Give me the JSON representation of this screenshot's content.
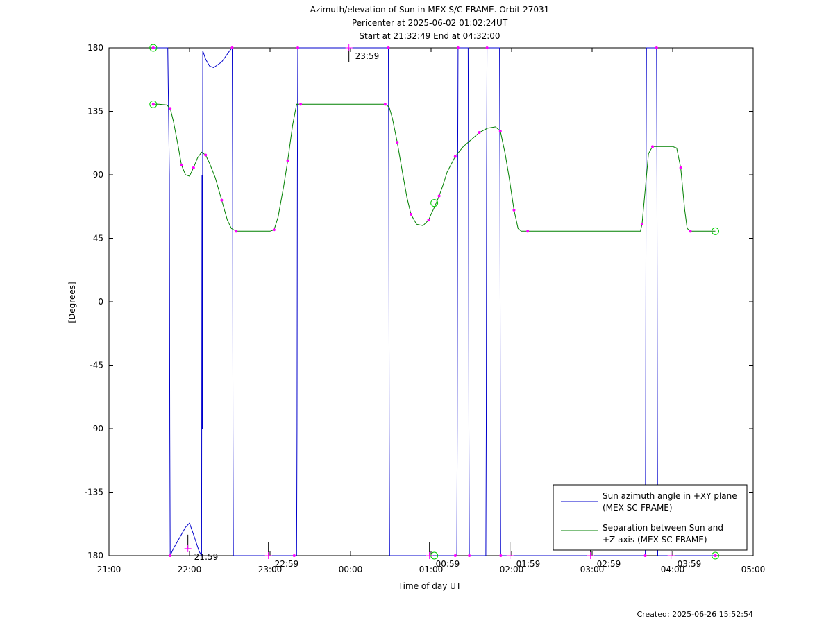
{
  "chart_data": {
    "type": "line",
    "title_lines": [
      "Azimuth/elevation of Sun in MEX S/C-FRAME.  Orbit 27031",
      "Pericenter at 2025-06-02 01:02:24UT",
      "Start at 21:32:49 End at 04:32:00"
    ],
    "xlabel": "Time of day UT",
    "ylabel": "[Degrees]",
    "xlim": [
      21.0,
      29.0
    ],
    "ylim": [
      -180,
      180
    ],
    "xticks": [
      {
        "v": 21,
        "label": "21:00"
      },
      {
        "v": 22,
        "label": "22:00"
      },
      {
        "v": 23,
        "label": "23:00"
      },
      {
        "v": 24,
        "label": "00:00"
      },
      {
        "v": 25,
        "label": "01:00"
      },
      {
        "v": 26,
        "label": "02:00"
      },
      {
        "v": 27,
        "label": "03:00"
      },
      {
        "v": 28,
        "label": "04:00"
      },
      {
        "v": 29,
        "label": "05:00"
      }
    ],
    "yticks": [
      {
        "v": 180,
        "label": "180"
      },
      {
        "v": 135,
        "label": "135"
      },
      {
        "v": 90,
        "label": "90"
      },
      {
        "v": 45,
        "label": "45"
      },
      {
        "v": 0,
        "label": "0"
      },
      {
        "v": -45,
        "label": "-45"
      },
      {
        "v": -90,
        "label": "-90"
      },
      {
        "v": -135,
        "label": "-135"
      },
      {
        "v": -180,
        "label": "-180"
      }
    ],
    "legend_position": "bottom-right",
    "series": [
      {
        "name": "Sun azimuth angle in +XY plane (MEX SC-FRAME)",
        "color": "#0000cc",
        "points": [
          [
            21.55,
            180
          ],
          [
            21.73,
            180
          ],
          [
            21.75,
            90
          ],
          [
            21.755,
            -90
          ],
          [
            21.76,
            -180
          ],
          [
            21.8,
            -175
          ],
          [
            21.9,
            -165
          ],
          [
            21.95,
            -160
          ],
          [
            22.0,
            -157
          ],
          [
            22.05,
            -165
          ],
          [
            22.12,
            -177
          ],
          [
            22.15,
            -180
          ],
          [
            22.155,
            90
          ],
          [
            22.16,
            -90
          ],
          [
            22.165,
            178
          ],
          [
            22.2,
            172
          ],
          [
            22.25,
            167
          ],
          [
            22.3,
            166
          ],
          [
            22.4,
            170
          ],
          [
            22.5,
            178
          ],
          [
            22.53,
            180
          ],
          [
            22.535,
            90
          ],
          [
            22.54,
            -90
          ],
          [
            22.545,
            -180
          ],
          [
            23.3,
            -180
          ],
          [
            23.33,
            -180
          ],
          [
            23.335,
            -90
          ],
          [
            23.34,
            90
          ],
          [
            23.345,
            180
          ],
          [
            24.45,
            180
          ],
          [
            24.47,
            180
          ],
          [
            24.475,
            90
          ],
          [
            24.48,
            -90
          ],
          [
            24.485,
            -180
          ],
          [
            25.3,
            -180
          ],
          [
            25.32,
            -180
          ],
          [
            25.325,
            -90
          ],
          [
            25.33,
            90
          ],
          [
            25.335,
            180
          ],
          [
            25.46,
            180
          ],
          [
            25.465,
            90
          ],
          [
            25.47,
            -90
          ],
          [
            25.475,
            -180
          ],
          [
            25.68,
            -180
          ],
          [
            25.685,
            -90
          ],
          [
            25.69,
            90
          ],
          [
            25.695,
            180
          ],
          [
            25.85,
            180
          ],
          [
            25.855,
            90
          ],
          [
            25.86,
            -90
          ],
          [
            25.865,
            -180
          ],
          [
            27.65,
            -180
          ],
          [
            27.66,
            -180
          ],
          [
            27.665,
            -90
          ],
          [
            27.67,
            90
          ],
          [
            27.675,
            180
          ],
          [
            27.8,
            180
          ],
          [
            27.805,
            90
          ],
          [
            27.81,
            -90
          ],
          [
            27.815,
            -180
          ],
          [
            28.53,
            -180
          ]
        ]
      },
      {
        "name": "Separation between Sun and +Z axis (MEX SC-FRAME)",
        "color": "#008000",
        "points": [
          [
            21.55,
            140
          ],
          [
            21.62,
            140
          ],
          [
            21.72,
            139.5
          ],
          [
            21.76,
            137
          ],
          [
            21.8,
            128
          ],
          [
            21.86,
            110
          ],
          [
            21.9,
            97
          ],
          [
            21.95,
            90
          ],
          [
            22.0,
            89
          ],
          [
            22.05,
            95
          ],
          [
            22.1,
            102
          ],
          [
            22.15,
            106
          ],
          [
            22.2,
            104
          ],
          [
            22.25,
            98
          ],
          [
            22.32,
            88
          ],
          [
            22.4,
            72
          ],
          [
            22.47,
            58
          ],
          [
            22.52,
            52
          ],
          [
            22.58,
            50
          ],
          [
            22.7,
            50
          ],
          [
            23.0,
            50
          ],
          [
            23.05,
            51
          ],
          [
            23.1,
            60
          ],
          [
            23.17,
            82
          ],
          [
            23.22,
            100
          ],
          [
            23.28,
            125
          ],
          [
            23.33,
            140
          ],
          [
            23.38,
            140
          ],
          [
            23.5,
            140
          ],
          [
            24.0,
            140
          ],
          [
            24.43,
            140
          ],
          [
            24.48,
            138
          ],
          [
            24.52,
            130
          ],
          [
            24.58,
            113
          ],
          [
            24.65,
            90
          ],
          [
            24.7,
            74
          ],
          [
            24.75,
            62
          ],
          [
            24.82,
            55
          ],
          [
            24.9,
            54
          ],
          [
            24.97,
            58
          ],
          [
            25.0,
            62
          ],
          [
            25.05,
            68
          ],
          [
            25.1,
            75
          ],
          [
            25.15,
            83
          ],
          [
            25.2,
            92
          ],
          [
            25.3,
            103
          ],
          [
            25.4,
            110
          ],
          [
            25.5,
            115
          ],
          [
            25.6,
            120
          ],
          [
            25.7,
            123
          ],
          [
            25.8,
            124
          ],
          [
            25.86,
            121
          ],
          [
            25.92,
            105
          ],
          [
            25.97,
            88
          ],
          [
            26.03,
            65
          ],
          [
            26.08,
            52
          ],
          [
            26.12,
            50
          ],
          [
            26.2,
            50
          ],
          [
            27.0,
            50
          ],
          [
            27.6,
            50
          ],
          [
            27.62,
            55
          ],
          [
            27.66,
            80
          ],
          [
            27.7,
            105
          ],
          [
            27.75,
            110
          ],
          [
            28.0,
            110
          ],
          [
            28.05,
            109
          ],
          [
            28.1,
            95
          ],
          [
            28.15,
            65
          ],
          [
            28.18,
            52
          ],
          [
            28.22,
            50
          ],
          [
            28.53,
            50
          ]
        ]
      }
    ],
    "hour_marker_labels": [
      {
        "x": 21.98,
        "y": -175,
        "text": "21:59"
      },
      {
        "x": 22.98,
        "y": -180,
        "text": "22:59"
      },
      {
        "x": 23.98,
        "y": 180,
        "text": "23:59"
      },
      {
        "x": 24.98,
        "y": -180,
        "text": "00:59"
      },
      {
        "x": 25.98,
        "y": -180,
        "text": "01:59"
      },
      {
        "x": 26.98,
        "y": -180,
        "text": "02:59"
      },
      {
        "x": 27.98,
        "y": -180,
        "text": "03:59"
      }
    ],
    "footer": "Created: 2025-06-26 15:52:54"
  }
}
